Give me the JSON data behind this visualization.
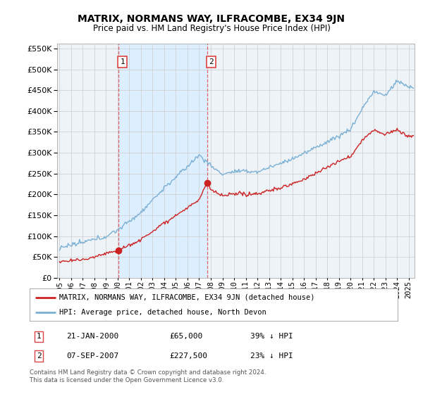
{
  "title": "MATRIX, NORMANS WAY, ILFRACOMBE, EX34 9JN",
  "subtitle": "Price paid vs. HM Land Registry's House Price Index (HPI)",
  "legend_line1": "MATRIX, NORMANS WAY, ILFRACOMBE, EX34 9JN (detached house)",
  "legend_line2": "HPI: Average price, detached house, North Devon",
  "transaction1_date": "21-JAN-2000",
  "transaction1_price": "£65,000",
  "transaction1_pct": "39% ↓ HPI",
  "transaction1_x": 2000.055,
  "transaction1_y": 65000,
  "transaction2_date": "07-SEP-2007",
  "transaction2_price": "£227,500",
  "transaction2_pct": "23% ↓ HPI",
  "transaction2_x": 2007.685,
  "transaction2_y": 227500,
  "ylim": [
    0,
    562500
  ],
  "xlim_start": 1994.8,
  "xlim_end": 2025.5,
  "footer": "Contains HM Land Registry data © Crown copyright and database right 2024.\nThis data is licensed under the Open Government Licence v3.0.",
  "hpi_color": "#7ab0d4",
  "price_color": "#cc2222",
  "vline_color": "#dd4444",
  "shade_color": "#ddeeff",
  "bg_color": "#eef3f8",
  "plot_bg": "#ffffff",
  "grid_color": "#cccccc",
  "hpi_anchors_x": [
    1995,
    1997,
    1999,
    2000,
    2002,
    2004,
    2007,
    2008,
    2009,
    2010,
    2012,
    2014,
    2016,
    2018,
    2020,
    2021,
    2022,
    2023,
    2024,
    2025
  ],
  "hpi_anchors_y": [
    72000,
    82000,
    100000,
    115000,
    158000,
    215000,
    295000,
    270000,
    248000,
    255000,
    255000,
    275000,
    300000,
    330000,
    360000,
    410000,
    450000,
    440000,
    475000,
    460000
  ],
  "red_anchors_x": [
    1995,
    1997,
    1999,
    2000,
    2002,
    2004,
    2007,
    2007.7,
    2008,
    2009,
    2010,
    2012,
    2014,
    2016,
    2018,
    2020,
    2021,
    2022,
    2023,
    2024,
    2025
  ],
  "red_anchors_y": [
    38000,
    43000,
    58000,
    65000,
    90000,
    130000,
    185000,
    227500,
    210000,
    195000,
    198000,
    200000,
    215000,
    235000,
    265000,
    290000,
    330000,
    355000,
    345000,
    355000,
    340000
  ]
}
